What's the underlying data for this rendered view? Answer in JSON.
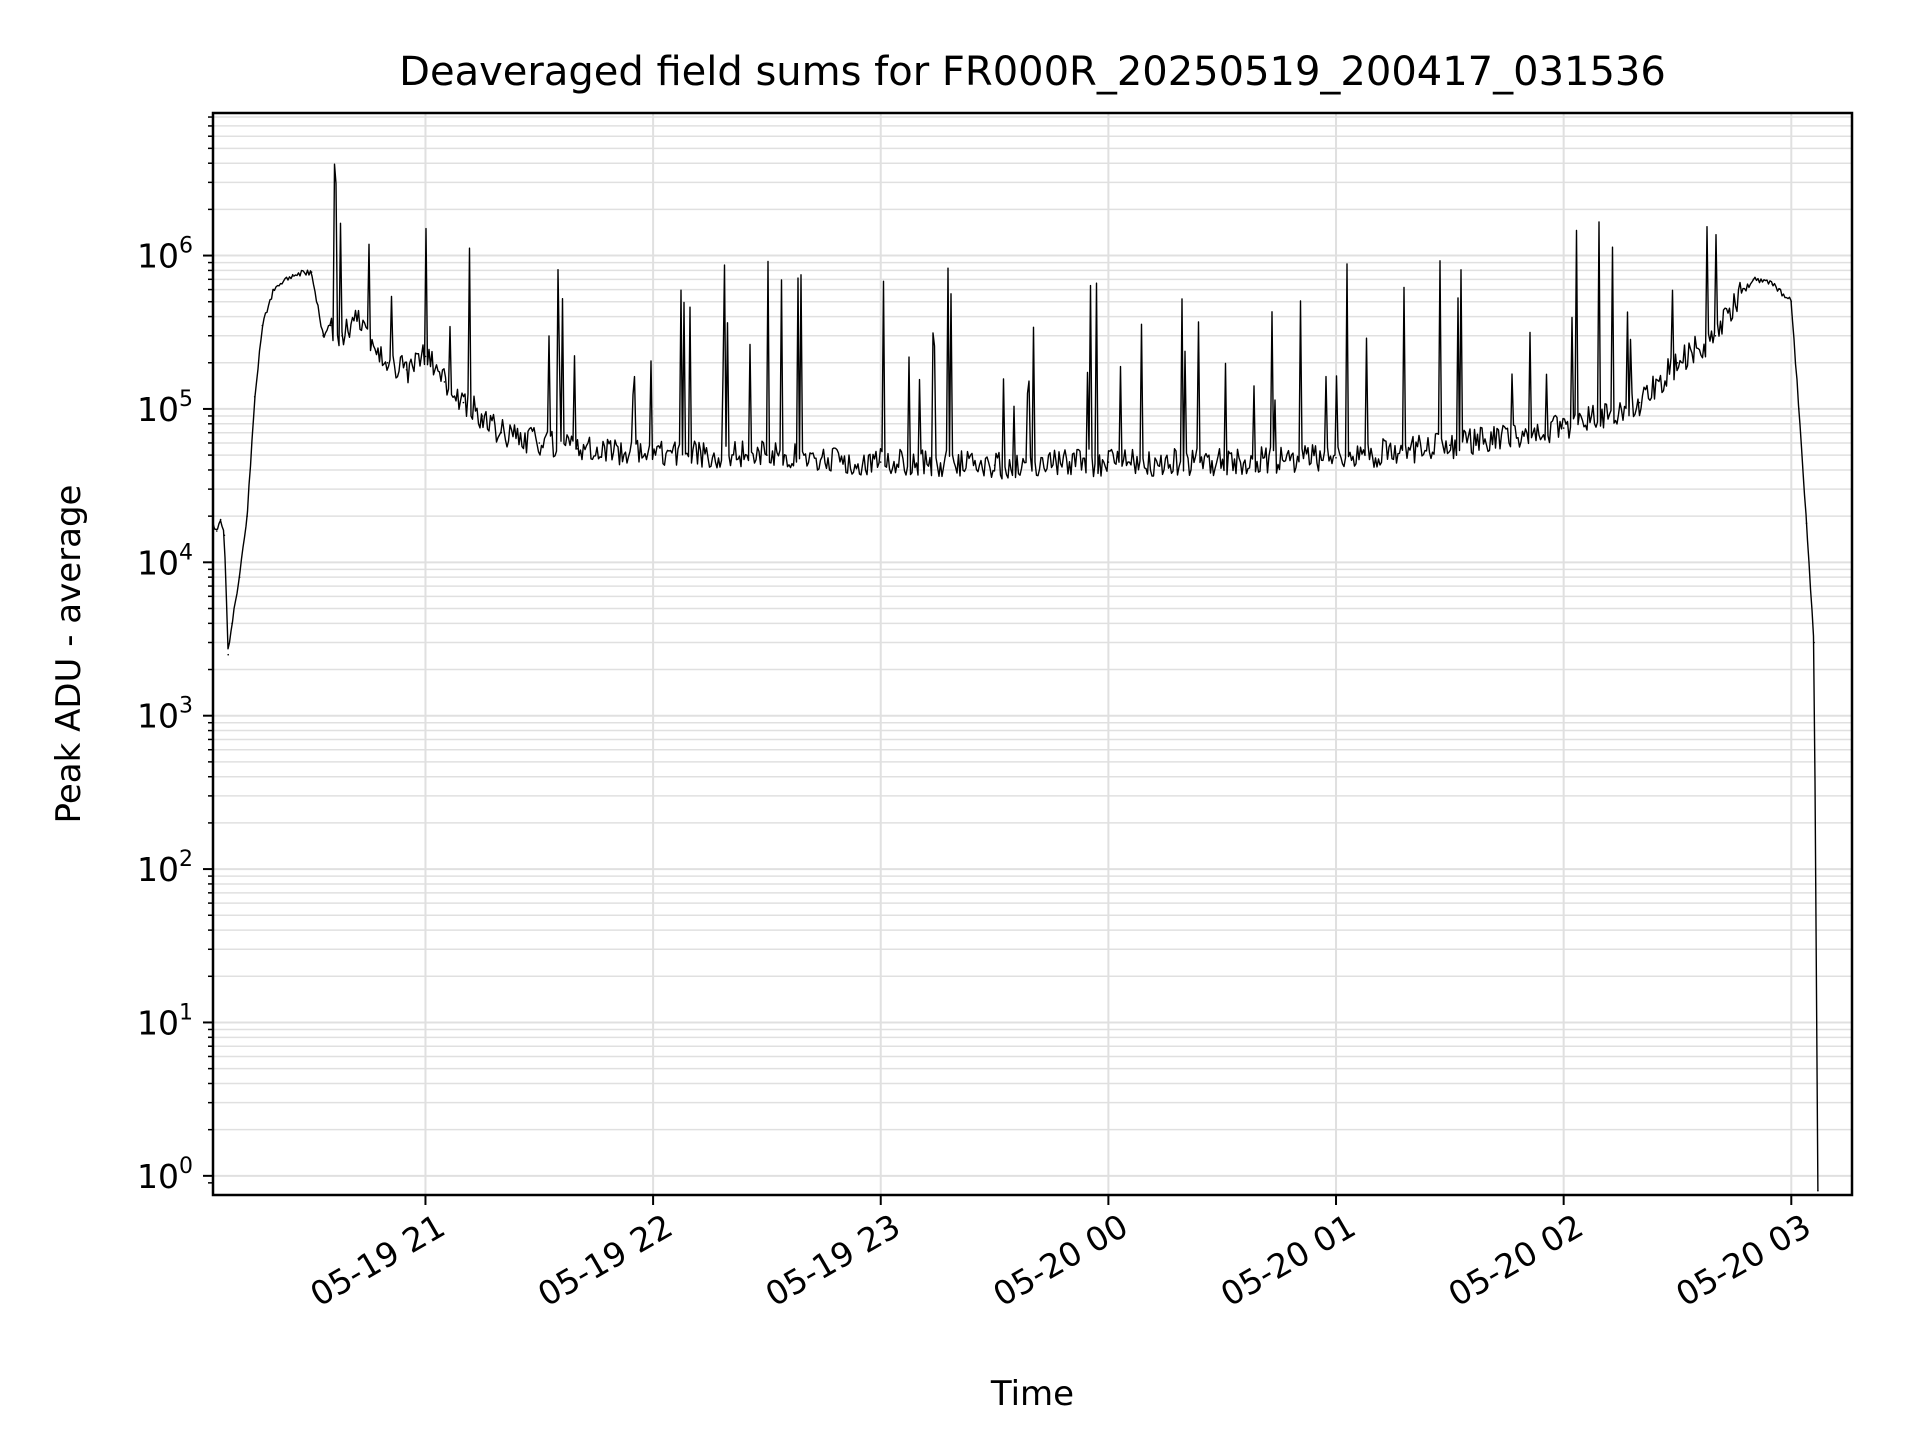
{
  "chart_data": {
    "type": "line",
    "title": "Deaveraged field sums for FR000R_20250519_200417_031536",
    "xlabel": "Time",
    "ylabel": "Peak ADU - average",
    "yscale": "log",
    "grid": true,
    "grid_minor": true,
    "line_color": "#000000",
    "grid_color": "#e0e0e0",
    "x_ticks": [
      "05-19 21",
      "05-19 22",
      "05-19 23",
      "05-20 00",
      "05-20 01",
      "05-20 02",
      "05-20 03"
    ],
    "y_ticks": [
      {
        "base": "10",
        "exp": "0"
      },
      {
        "base": "10",
        "exp": "1"
      },
      {
        "base": "10",
        "exp": "2"
      },
      {
        "base": "10",
        "exp": "3"
      },
      {
        "base": "10",
        "exp": "4"
      },
      {
        "base": "10",
        "exp": "5"
      },
      {
        "base": "10",
        "exp": "6"
      }
    ],
    "xlim": [
      "2025-05-19 20:04",
      "2025-05-20 03:16"
    ],
    "ylim": [
      0.75,
      8500000
    ],
    "series": [
      {
        "x": [
          "2025-05-19 20:04",
          "2025-05-19 20:05",
          "2025-05-19 20:06",
          "2025-05-19 20:07",
          "2025-05-19 20:08",
          "2025-05-19 20:09",
          "2025-05-19 20:11",
          "2025-05-19 20:13",
          "2025-05-19 20:15",
          "2025-05-19 20:17",
          "2025-05-19 20:20",
          "2025-05-19 20:25",
          "2025-05-19 20:30",
          "2025-05-19 20:33",
          "2025-05-19 20:35",
          "2025-05-19 20:38",
          "2025-05-19 20:42",
          "2025-05-19 20:50",
          "2025-05-19 20:55",
          "2025-05-19 21:00",
          "2025-05-19 21:05",
          "2025-05-19 21:10",
          "2025-05-19 21:15",
          "2025-05-19 21:20",
          "2025-05-19 21:30",
          "2025-05-19 21:40",
          "2025-05-19 22:00",
          "2025-05-19 22:30",
          "2025-05-19 23:00",
          "2025-05-19 23:30",
          "2025-05-20 00:00",
          "2025-05-20 00:30",
          "2025-05-20 01:00",
          "2025-05-20 01:30",
          "2025-05-20 02:00",
          "2025-05-20 02:20",
          "2025-05-20 02:30",
          "2025-05-20 02:40",
          "2025-05-20 02:45",
          "2025-05-20 02:50",
          "2025-05-20 02:55",
          "2025-05-20 03:00",
          "2025-05-20 03:02",
          "2025-05-20 03:04",
          "2025-05-20 03:06",
          "2025-05-20 03:07"
        ],
        "y": [
          18000,
          16000,
          19000,
          15000,
          2500,
          4000,
          8000,
          20000,
          120000,
          350000,
          600000,
          750000,
          780000,
          300000,
          350000,
          300000,
          400000,
          200000,
          180000,
          220000,
          150000,
          110000,
          90000,
          70000,
          60000,
          55000,
          52000,
          50000,
          45000,
          43000,
          45000,
          45000,
          48000,
          58000,
          75000,
          110000,
          200000,
          300000,
          500000,
          700000,
          650000,
          500000,
          100000,
          18000,
          3000,
          0.8
        ]
      }
    ]
  }
}
